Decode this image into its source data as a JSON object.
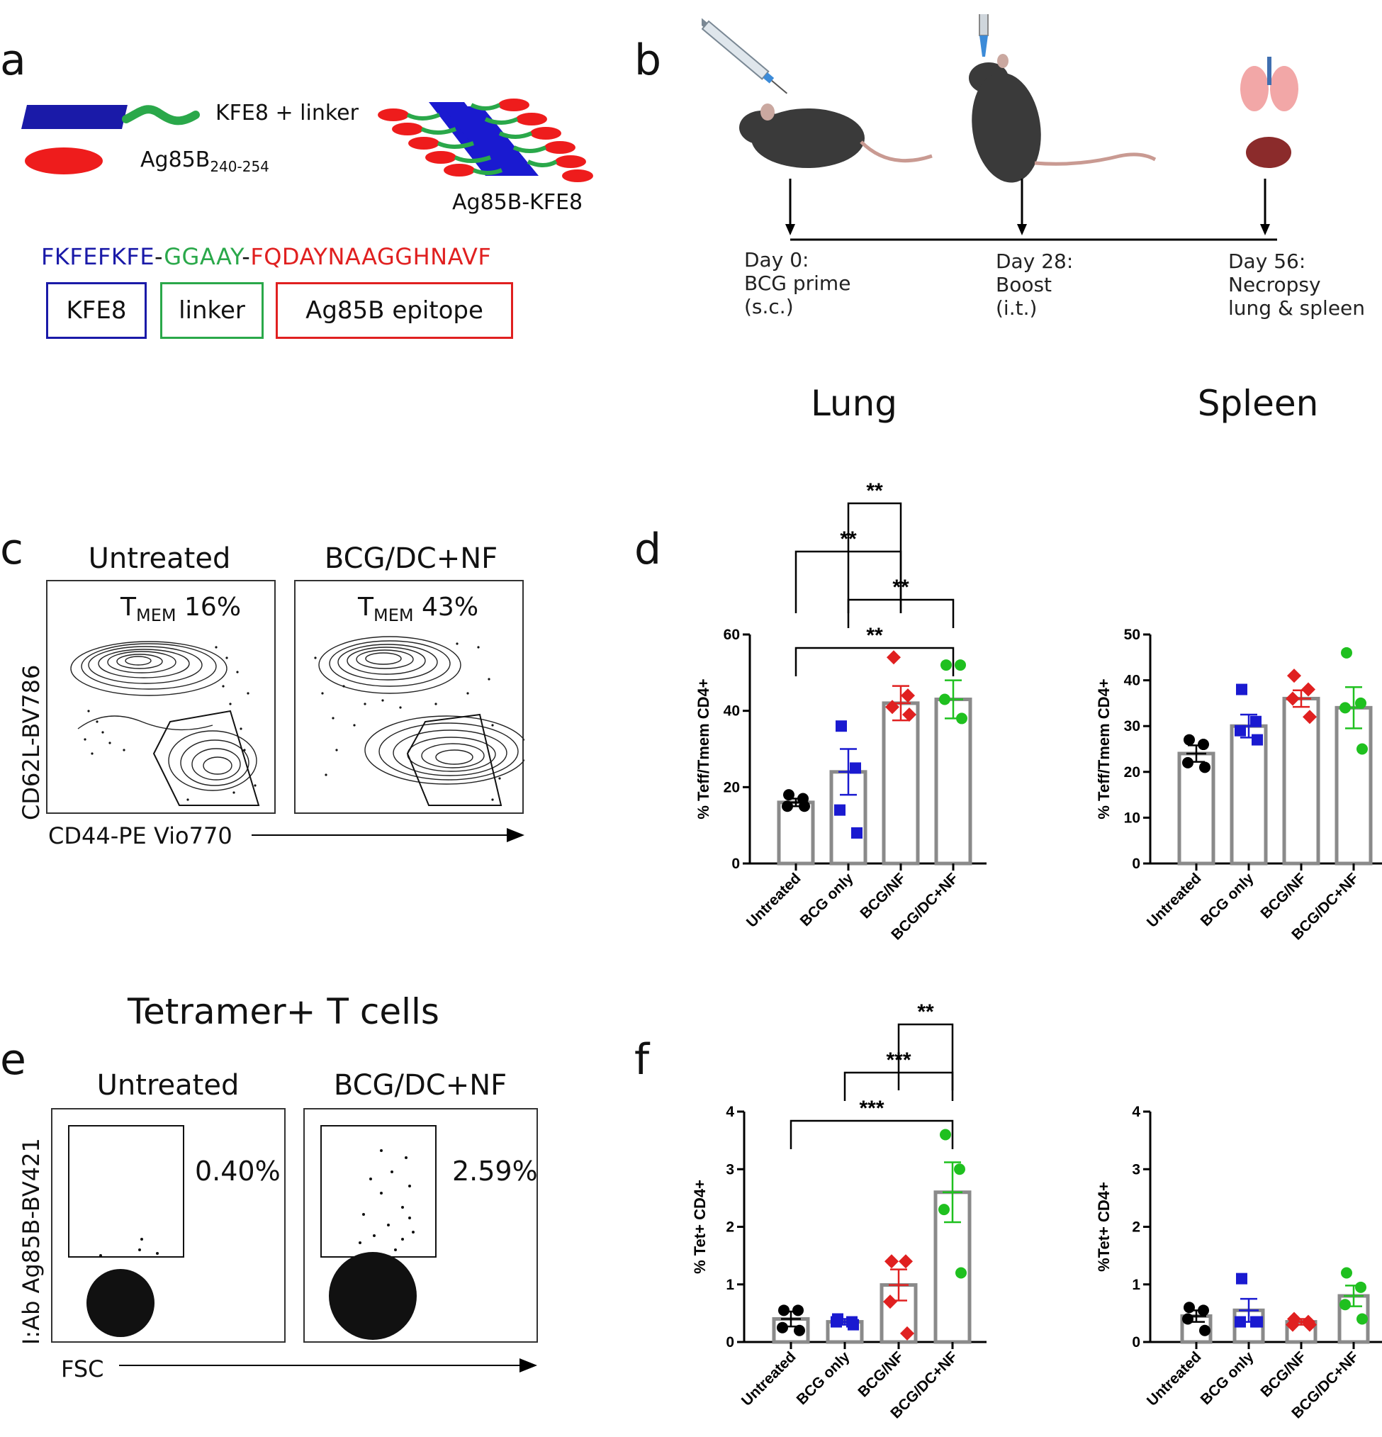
{
  "panels": {
    "a": "a",
    "b": "b",
    "c": "c",
    "d": "d",
    "e": "e",
    "f": "f"
  },
  "panel_a": {
    "kfe_linker_label": "KFE8 + linker",
    "ag_label_main": "Ag85B",
    "ag_label_sub": "240-254",
    "assembly_label": "Ag85B-KFE8",
    "seq_kfe": "FKFEFKFE",
    "seq_dash1": "-",
    "seq_linker": "GGAAY",
    "seq_dash2": "-",
    "seq_epitope": "FQDAYNAAGGHNAVF",
    "box_kfe": "KFE8",
    "box_linker": "linker",
    "box_epitope": "Ag85B epitope",
    "colors": {
      "kfe": "#1a1aa8",
      "linker": "#2aa84a",
      "epitope": "#e02020"
    }
  },
  "panel_b": {
    "timeline": [
      {
        "l1": "Day 0:",
        "l2": "BCG prime",
        "l3": "(s.c.)"
      },
      {
        "l1": "Day 28:",
        "l2": "Boost",
        "l3": "(i.t.)"
      },
      {
        "l1": "Day 56:",
        "l2": "Necropsy",
        "l3": "lung & spleen"
      }
    ]
  },
  "column_headers": {
    "lung": "Lung",
    "spleen": "Spleen"
  },
  "panel_c": {
    "left_title": "Untreated",
    "right_title": "BCG/DC+NF",
    "left_gate_prefix": "T",
    "left_gate_sub": "MEM",
    "left_gate_pct": "16%",
    "right_gate_prefix": "T",
    "right_gate_sub": "MEM",
    "right_gate_pct": "43%",
    "y_axis": "CD62L-BV786",
    "x_axis": "CD44-PE Vio770"
  },
  "panel_e": {
    "title": "Tetramer+ T cells",
    "left_title": "Untreated",
    "right_title": "BCG/DC+NF",
    "left_pct": "0.40%",
    "right_pct": "2.59%",
    "y_axis": "I:Ab Ag85B-BV421",
    "x_axis": "FSC"
  },
  "chart_data": [
    {
      "id": "d-lung",
      "type": "bar",
      "title": "",
      "categories": [
        "Untreated",
        "BCG only",
        "BCG/NF",
        "BCG/DC+NF"
      ],
      "values": [
        16,
        24,
        42,
        43
      ],
      "sem": [
        1,
        6,
        4.5,
        5
      ],
      "points": [
        [
          18,
          17,
          15,
          15
        ],
        [
          36,
          25,
          14,
          8
        ],
        [
          54,
          44,
          41,
          39
        ],
        [
          52,
          52,
          43,
          38
        ]
      ],
      "ylabel": "% Teff/Tmem CD4+",
      "xlabel": "",
      "ylim": [
        0,
        60
      ],
      "yticks": [
        0,
        20,
        40,
        60
      ],
      "colors": [
        "#000000",
        "#1a1ad0",
        "#e02020",
        "#1fc01f"
      ],
      "significance": [
        {
          "from": 0,
          "to": 3,
          "label": "**"
        },
        {
          "from": 1,
          "to": 3,
          "label": "**"
        },
        {
          "from": 0,
          "to": 2,
          "label": "**"
        },
        {
          "from": 1,
          "to": 2,
          "label": "**"
        }
      ]
    },
    {
      "id": "d-spleen",
      "type": "bar",
      "title": "",
      "categories": [
        "Untreated",
        "BCG only",
        "BCG/NF",
        "BCG/DC+NF"
      ],
      "values": [
        24,
        30,
        36,
        34
      ],
      "sem": [
        1.8,
        2.5,
        1.8,
        4.5
      ],
      "points": [
        [
          27,
          26,
          22,
          21
        ],
        [
          38,
          31,
          29,
          27
        ],
        [
          41,
          38,
          36,
          32
        ],
        [
          46,
          35,
          34,
          25
        ]
      ],
      "ylabel": "% Teff/Tmem CD4+",
      "xlabel": "",
      "ylim": [
        0,
        50
      ],
      "yticks": [
        0,
        10,
        20,
        30,
        40,
        50
      ],
      "colors": [
        "#000000",
        "#1a1ad0",
        "#e02020",
        "#1fc01f"
      ],
      "significance": []
    },
    {
      "id": "f-lung",
      "type": "bar",
      "title": "",
      "categories": [
        "Untreated",
        "BCG only",
        "BCG/NF",
        "BCG/DC+NF"
      ],
      "values": [
        0.4,
        0.35,
        0.99,
        2.6
      ],
      "sem": [
        0.13,
        0.05,
        0.27,
        0.52
      ],
      "points": [
        [
          0.55,
          0.55,
          0.25,
          0.2
        ],
        [
          0.4,
          0.35,
          0.35,
          0.3
        ],
        [
          1.4,
          1.4,
          0.7,
          0.15
        ],
        [
          3.6,
          3.0,
          2.3,
          1.2
        ]
      ],
      "ylabel": "% Tet+ CD4+",
      "xlabel": "",
      "ylim": [
        0,
        4
      ],
      "yticks": [
        0,
        1,
        2,
        3,
        4
      ],
      "colors": [
        "#000000",
        "#1a1ad0",
        "#e02020",
        "#1fc01f"
      ],
      "significance": [
        {
          "from": 0,
          "to": 3,
          "label": "***"
        },
        {
          "from": 1,
          "to": 3,
          "label": "***"
        },
        {
          "from": 2,
          "to": 3,
          "label": "**"
        }
      ]
    },
    {
      "id": "f-spleen",
      "type": "bar",
      "title": "",
      "categories": [
        "Untreated",
        "BCG only",
        "BCG/NF",
        "BCG/DC+NF"
      ],
      "values": [
        0.45,
        0.55,
        0.35,
        0.8
      ],
      "sem": [
        0.1,
        0.2,
        0.05,
        0.18
      ],
      "points": [
        [
          0.6,
          0.55,
          0.4,
          0.2
        ],
        [
          1.1,
          0.35,
          0.35,
          0.35
        ],
        [
          0.4,
          0.35,
          0.3,
          0.3
        ],
        [
          1.2,
          0.95,
          0.65,
          0.4
        ]
      ],
      "ylabel": "%Tet+ CD4+",
      "xlabel": "",
      "ylim": [
        0,
        4
      ],
      "yticks": [
        0,
        1,
        2,
        3,
        4
      ],
      "colors": [
        "#000000",
        "#1a1ad0",
        "#e02020",
        "#1fc01f"
      ],
      "significance": []
    }
  ]
}
